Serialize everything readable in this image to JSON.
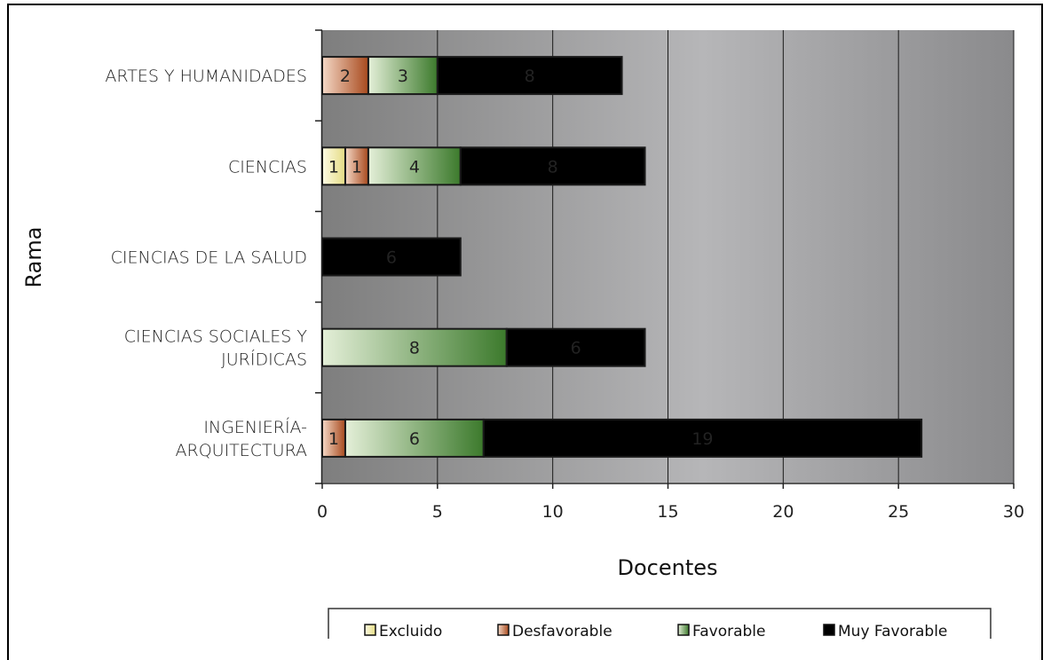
{
  "chart_data": {
    "type": "bar",
    "orientation": "horizontal",
    "stacked": true,
    "title": "",
    "xlabel": "Docentes",
    "ylabel": "Rama",
    "xlim": [
      0,
      30
    ],
    "xticks": [
      "0",
      "5",
      "10",
      "15",
      "20",
      "25",
      "30"
    ],
    "grid": true,
    "legend_position": "bottom",
    "categories": [
      [
        "ARTES Y HUMANIDADES"
      ],
      [
        "CIENCIAS"
      ],
      [
        "CIENCIAS DE LA SALUD"
      ],
      [
        "CIENCIAS SOCIALES Y",
        "JURÍDICAS"
      ],
      [
        "INGENIERÍA-",
        "ARQUITECTURA"
      ]
    ],
    "series": [
      {
        "name": "Excluido",
        "color": "#ece598",
        "values": [
          0,
          1,
          0,
          0,
          0
        ]
      },
      {
        "name": "Desfavorable",
        "color": "#b8572a",
        "values": [
          2,
          1,
          0,
          0,
          1
        ]
      },
      {
        "name": "Favorable",
        "color": "#4e8a3a",
        "values": [
          3,
          4,
          0,
          8,
          6
        ]
      },
      {
        "name": "Muy Favorable",
        "color": "#6d9fdc",
        "values": [
          8,
          8,
          6,
          6,
          19
        ]
      }
    ]
  }
}
